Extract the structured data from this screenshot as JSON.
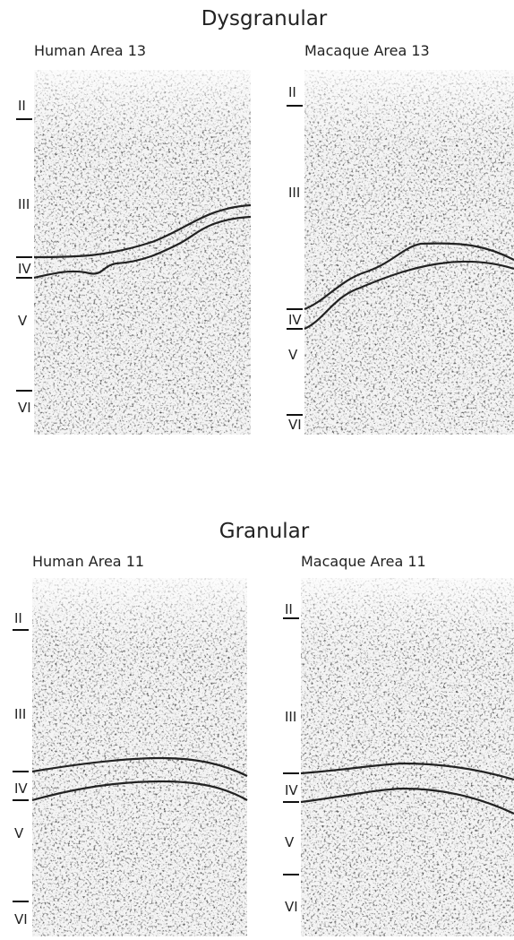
{
  "sections": [
    {
      "title": "Dysgranular",
      "panels": [
        {
          "label": "Human Area 13",
          "layers": [
            "II",
            "III",
            "IV",
            "V",
            "VI"
          ]
        },
        {
          "label": "Macaque Area 13",
          "layers": [
            "II",
            "III",
            "IV",
            "V",
            "VI"
          ]
        }
      ]
    },
    {
      "title": "Granular",
      "panels": [
        {
          "label": "Human Area 11",
          "layers": [
            "II",
            "III",
            "IV",
            "V",
            "VI"
          ]
        },
        {
          "label": "Macaque Area 11",
          "layers": [
            "II",
            "III",
            "IV",
            "V",
            "VI"
          ]
        }
      ]
    }
  ]
}
